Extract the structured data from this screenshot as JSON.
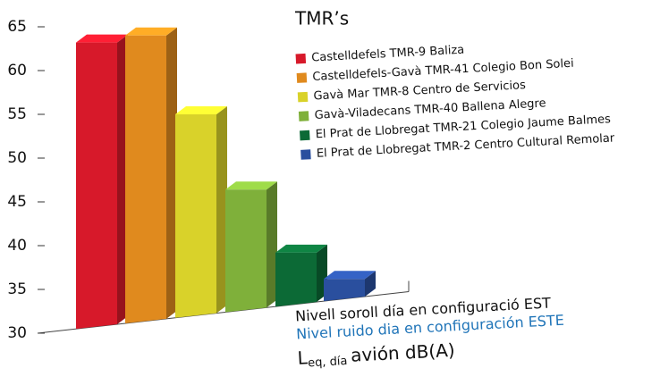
{
  "chart_data": {
    "type": "bar",
    "legend_title": "TMR’s",
    "categories": [
      "Castelldefels TMR-9 Baliza",
      "Castelldefels-Gavà TMR-41 Colegio Bon Solei",
      "Gavà Mar TMR-8 Centro de Servicios",
      "Gavà-Viladecans TMR-40 Ballena Alegre",
      "El Prat de Llobregat TMR-21 Colegio Jaume Balmes",
      "El Prat de Llobregat TMR-2 Centro Cultural Remolar"
    ],
    "values": [
      63.2,
      64,
      55,
      46.4,
      39.2,
      36.2
    ],
    "colors": [
      "#d7192a",
      "#e08a1e",
      "#d9d22a",
      "#7fb03a",
      "#0c6a36",
      "#2a4f9e"
    ],
    "ylim": [
      30,
      65
    ],
    "yticks": [
      30,
      35,
      40,
      45,
      50,
      55,
      60,
      65
    ],
    "caption_ca": "Nivell soroll día en configuració EST",
    "caption_es": "Nivel ruido dia en configuración ESTE",
    "unit": {
      "symbol": "L",
      "subscript": "eq, día",
      "text": "avión dB(A)"
    }
  }
}
